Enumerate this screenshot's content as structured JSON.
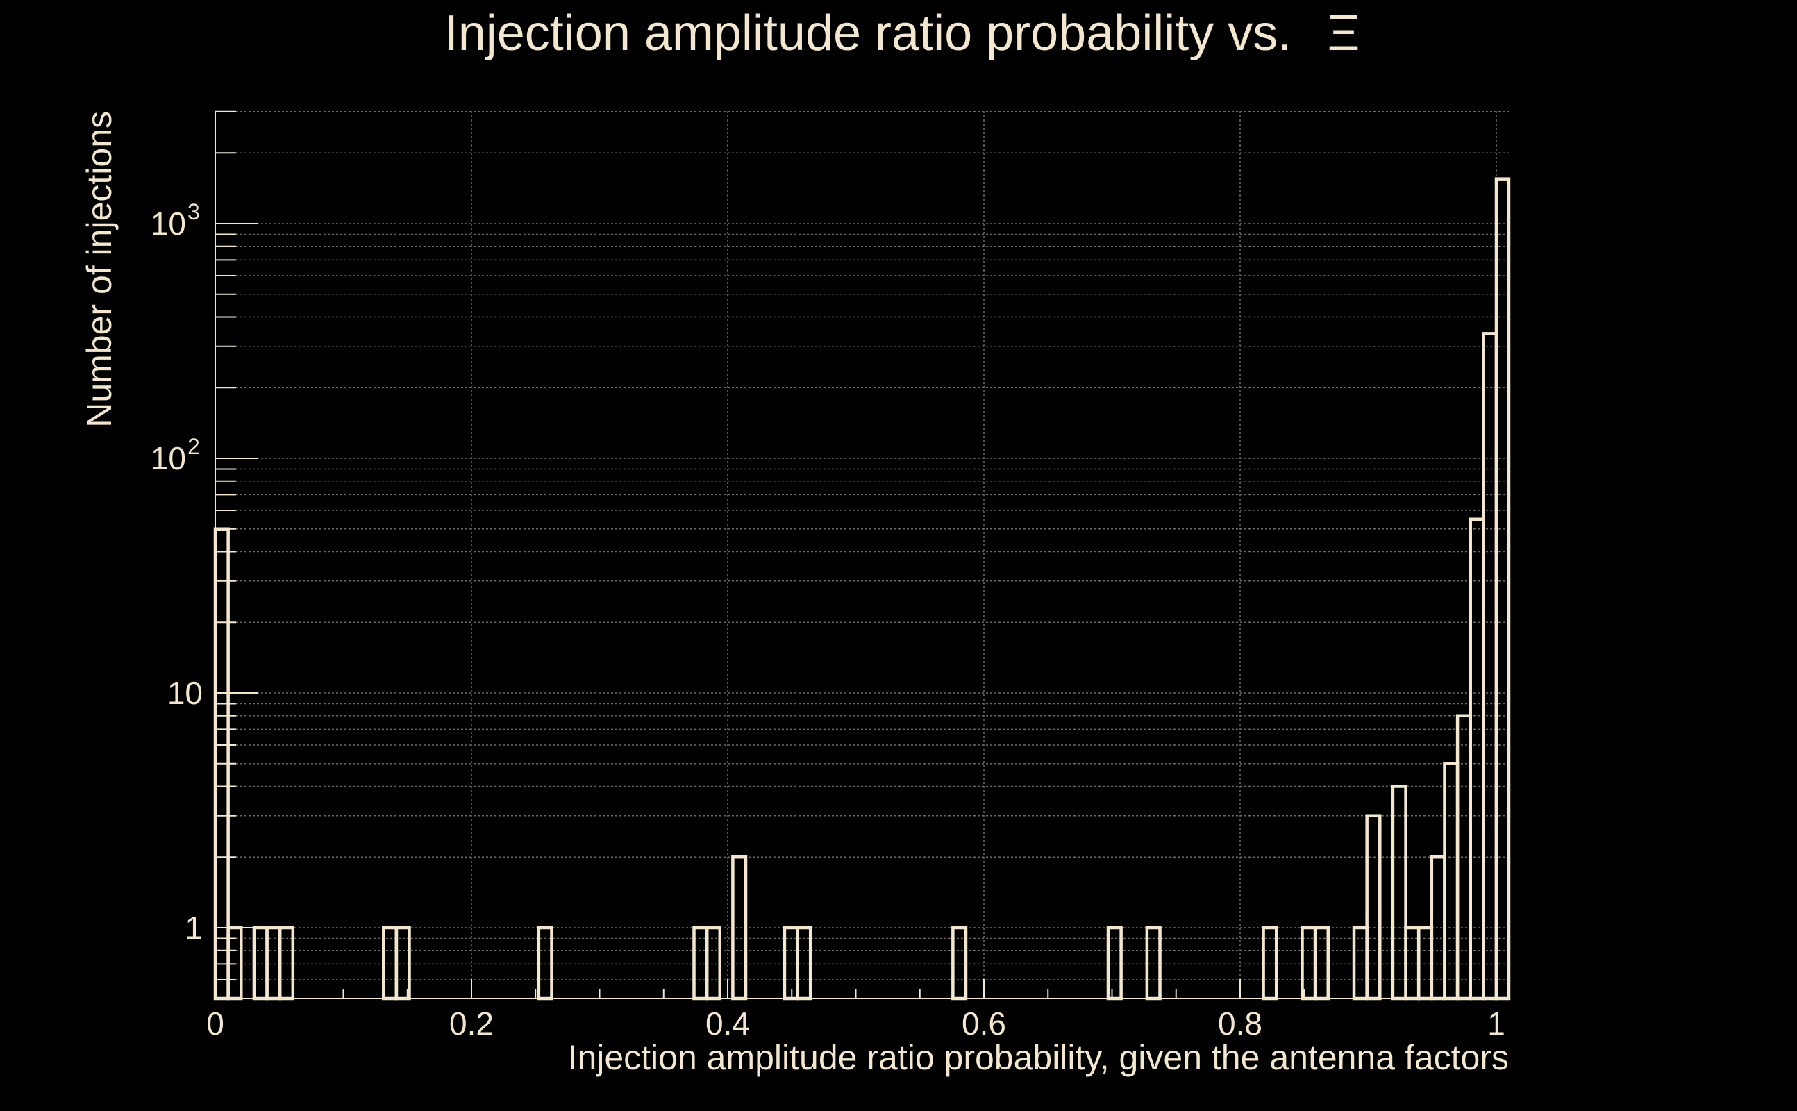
{
  "chart_data": {
    "type": "bar",
    "title": "Injection amplitude ratio probability vs.",
    "title_symbol": "Ξ",
    "xlabel": "Injection amplitude ratio probability, given the antenna factors",
    "ylabel": "Number of injections",
    "xlim": [
      0,
      1.01
    ],
    "ylim": [
      0.5,
      3000
    ],
    "yscale": "log",
    "grid": true,
    "x_ticks": [
      {
        "value": 0,
        "label": "0"
      },
      {
        "value": 0.2,
        "label": "0.2"
      },
      {
        "value": 0.4,
        "label": "0.4"
      },
      {
        "value": 0.6,
        "label": "0.6"
      },
      {
        "value": 0.8,
        "label": "0.8"
      },
      {
        "value": 1,
        "label": "1"
      }
    ],
    "y_ticks": [
      {
        "value": 1,
        "base": "1",
        "exp": ""
      },
      {
        "value": 10,
        "base": "10",
        "exp": ""
      },
      {
        "value": 100,
        "base": "10",
        "exp": "2"
      },
      {
        "value": 1000,
        "base": "10",
        "exp": "3"
      }
    ],
    "bin_width": 0.0101,
    "bins": [
      {
        "x": 0.0,
        "count": 50
      },
      {
        "x": 0.0101,
        "count": 1
      },
      {
        "x": 0.0303,
        "count": 1
      },
      {
        "x": 0.0404,
        "count": 1
      },
      {
        "x": 0.0505,
        "count": 1
      },
      {
        "x": 0.1313,
        "count": 1
      },
      {
        "x": 0.1414,
        "count": 1
      },
      {
        "x": 0.2525,
        "count": 1
      },
      {
        "x": 0.3737,
        "count": 1
      },
      {
        "x": 0.3838,
        "count": 1
      },
      {
        "x": 0.404,
        "count": 2
      },
      {
        "x": 0.4444,
        "count": 1
      },
      {
        "x": 0.4545,
        "count": 1
      },
      {
        "x": 0.5758,
        "count": 1
      },
      {
        "x": 0.697,
        "count": 1
      },
      {
        "x": 0.7273,
        "count": 1
      },
      {
        "x": 0.8182,
        "count": 1
      },
      {
        "x": 0.8485,
        "count": 1
      },
      {
        "x": 0.8586,
        "count": 1
      },
      {
        "x": 0.8889,
        "count": 1
      },
      {
        "x": 0.899,
        "count": 3
      },
      {
        "x": 0.9192,
        "count": 4
      },
      {
        "x": 0.9293,
        "count": 1
      },
      {
        "x": 0.9394,
        "count": 1
      },
      {
        "x": 0.9495,
        "count": 2
      },
      {
        "x": 0.9596,
        "count": 5
      },
      {
        "x": 0.9697,
        "count": 8
      },
      {
        "x": 0.9798,
        "count": 55
      },
      {
        "x": 0.9899,
        "count": 340
      },
      {
        "x": 1.0,
        "count": 1550
      }
    ]
  },
  "colors": {
    "background": "#000000",
    "foreground": "#f3e8cf",
    "grid": "#6e6a62"
  }
}
